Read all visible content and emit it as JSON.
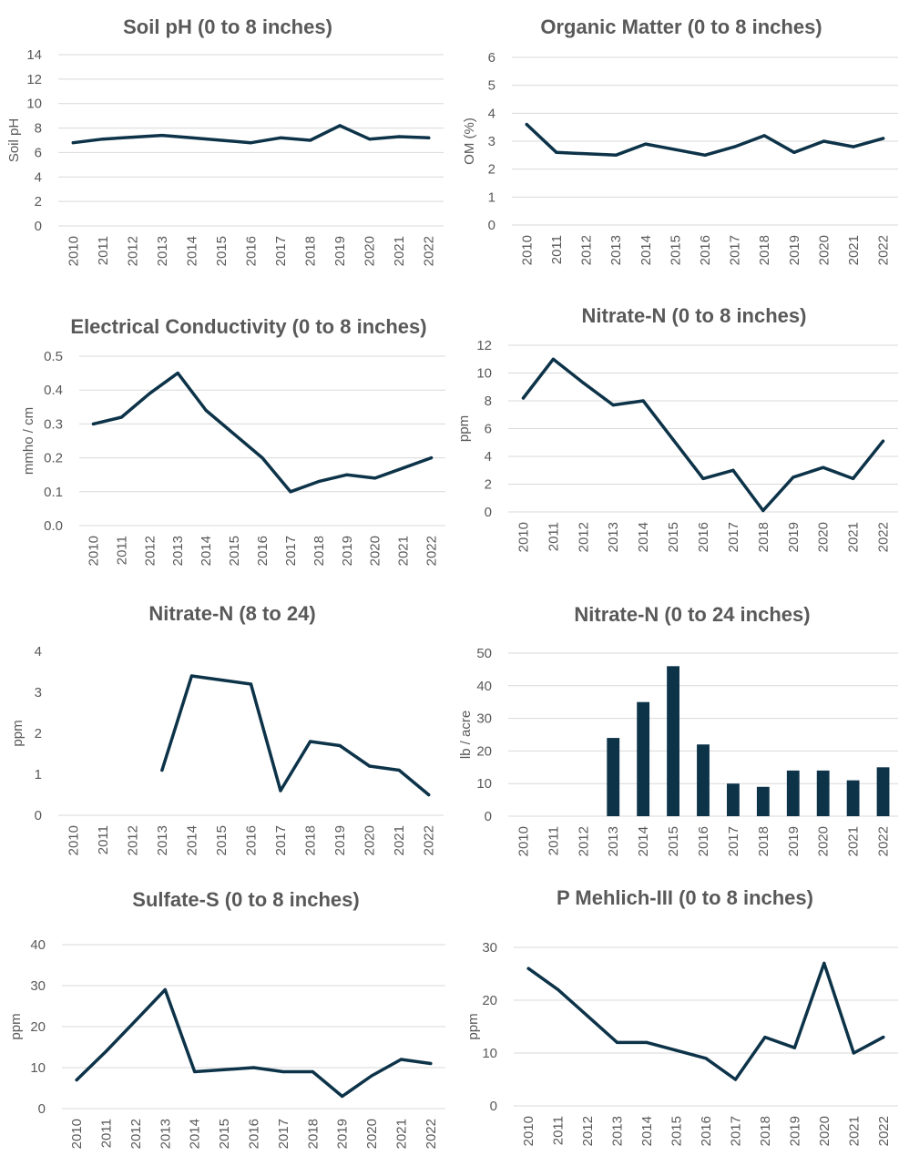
{
  "colors": {
    "series": "#0d3349",
    "grid": "#d9d9d9",
    "text": "#595959"
  },
  "chart_data": [
    {
      "type": "line",
      "title": "Soil pH (0 to 8 inches)",
      "ylabel": "Soil pH",
      "categories": [
        "2010",
        "2011",
        "2012",
        "2013",
        "2014",
        "2015",
        "2016",
        "2017",
        "2018",
        "2019",
        "2020",
        "2021",
        "2022"
      ],
      "values": [
        6.8,
        7.1,
        7.25,
        7.4,
        7.2,
        7.0,
        6.8,
        7.2,
        7.0,
        8.2,
        7.1,
        7.3,
        7.2
      ],
      "ylim": [
        0,
        14
      ],
      "yticks": [
        "0",
        "2",
        "4",
        "6",
        "8",
        "10",
        "12",
        "14"
      ],
      "grid": true
    },
    {
      "type": "line",
      "title": "Organic Matter (0 to 8 inches)",
      "ylabel": "OM  (%)",
      "categories": [
        "2010",
        "2011",
        "2012",
        "2013",
        "2014",
        "2015",
        "2016",
        "2017",
        "2018",
        "2019",
        "2020",
        "2021",
        "2022"
      ],
      "values": [
        3.6,
        2.6,
        2.55,
        2.5,
        2.9,
        2.7,
        2.5,
        2.8,
        3.2,
        2.6,
        3.0,
        2.8,
        3.1
      ],
      "ylim": [
        0,
        6
      ],
      "yticks": [
        "0",
        "1",
        "2",
        "3",
        "4",
        "5",
        "6"
      ],
      "grid": true
    },
    {
      "type": "line",
      "title": "Electrical Conductivity (0 to 8 inches)",
      "ylabel": "mmho / cm",
      "categories": [
        "2010",
        "2011",
        "2012",
        "2013",
        "2014",
        "2015",
        "2016",
        "2017",
        "2018",
        "2019",
        "2020",
        "2021",
        "2022"
      ],
      "values": [
        0.3,
        0.32,
        0.39,
        0.45,
        0.34,
        0.27,
        0.2,
        0.1,
        0.13,
        0.15,
        0.14,
        0.17,
        0.2
      ],
      "ylim": [
        0,
        0.5
      ],
      "yticks": [
        "0.0",
        "0.1",
        "0.2",
        "0.3",
        "0.4",
        "0.5"
      ],
      "grid": true
    },
    {
      "type": "line",
      "title": "Nitrate-N (0 to 8 inches)",
      "ylabel": "ppm",
      "categories": [
        "2010",
        "2011",
        "2012",
        "2013",
        "2014",
        "2015",
        "2016",
        "2017",
        "2018",
        "2019",
        "2020",
        "2021",
        "2022"
      ],
      "values": [
        8.2,
        11.0,
        9.3,
        7.7,
        8.0,
        5.2,
        2.4,
        3.0,
        0.1,
        2.5,
        3.2,
        2.4,
        5.1
      ],
      "ylim": [
        0,
        12
      ],
      "yticks": [
        "0",
        "2",
        "4",
        "6",
        "8",
        "10",
        "12"
      ],
      "grid": true
    },
    {
      "type": "line",
      "title": "Nitrate-N (8 to 24)",
      "ylabel": "ppm",
      "categories": [
        "2010",
        "2011",
        "2012",
        "2013",
        "2014",
        "2015",
        "2016",
        "2017",
        "2018",
        "2019",
        "2020",
        "2021",
        "2022"
      ],
      "values": [
        null,
        null,
        null,
        1.1,
        3.4,
        3.3,
        3.2,
        0.6,
        1.8,
        1.7,
        1.2,
        1.1,
        0.5
      ],
      "ylim": [
        0,
        4
      ],
      "yticks": [
        "0",
        "1",
        "2",
        "3",
        "4"
      ],
      "grid": false
    },
    {
      "type": "bar",
      "title": "Nitrate-N (0 to 24 inches)",
      "ylabel": "lb / acre",
      "categories": [
        "2010",
        "2011",
        "2012",
        "2013",
        "2014",
        "2015",
        "2016",
        "2017",
        "2018",
        "2019",
        "2020",
        "2021",
        "2022"
      ],
      "values": [
        null,
        null,
        null,
        24,
        35,
        46,
        22,
        10,
        9,
        14,
        14,
        11,
        15
      ],
      "ylim": [
        0,
        50
      ],
      "yticks": [
        "0",
        "10",
        "20",
        "30",
        "40",
        "50"
      ],
      "grid": true
    },
    {
      "type": "line",
      "title": "Sulfate-S (0 to 8 inches)",
      "ylabel": "ppm",
      "categories": [
        "2010",
        "2011",
        "2012",
        "2013",
        "2014",
        "2015",
        "2016",
        "2017",
        "2018",
        "2019",
        "2020",
        "2021",
        "2022"
      ],
      "values": [
        7,
        14,
        21.5,
        29,
        9,
        9.5,
        10,
        9,
        9,
        3,
        8,
        12,
        11
      ],
      "ylim": [
        0,
        40
      ],
      "yticks": [
        "0",
        "10",
        "20",
        "30",
        "40"
      ],
      "grid": true
    },
    {
      "type": "line",
      "title": "P Mehlich-III (0 to 8 inches)",
      "ylabel": "ppm",
      "categories": [
        "2010",
        "2011",
        "2012",
        "2013",
        "2014",
        "2015",
        "2016",
        "2017",
        "2018",
        "2019",
        "2020",
        "2021",
        "2022"
      ],
      "values": [
        26,
        22,
        17,
        12,
        12,
        10.5,
        9,
        5,
        13,
        11,
        27,
        10,
        13
      ],
      "ylim": [
        0,
        30
      ],
      "yticks": [
        "0",
        "10",
        "20",
        "30"
      ],
      "grid": true
    }
  ]
}
